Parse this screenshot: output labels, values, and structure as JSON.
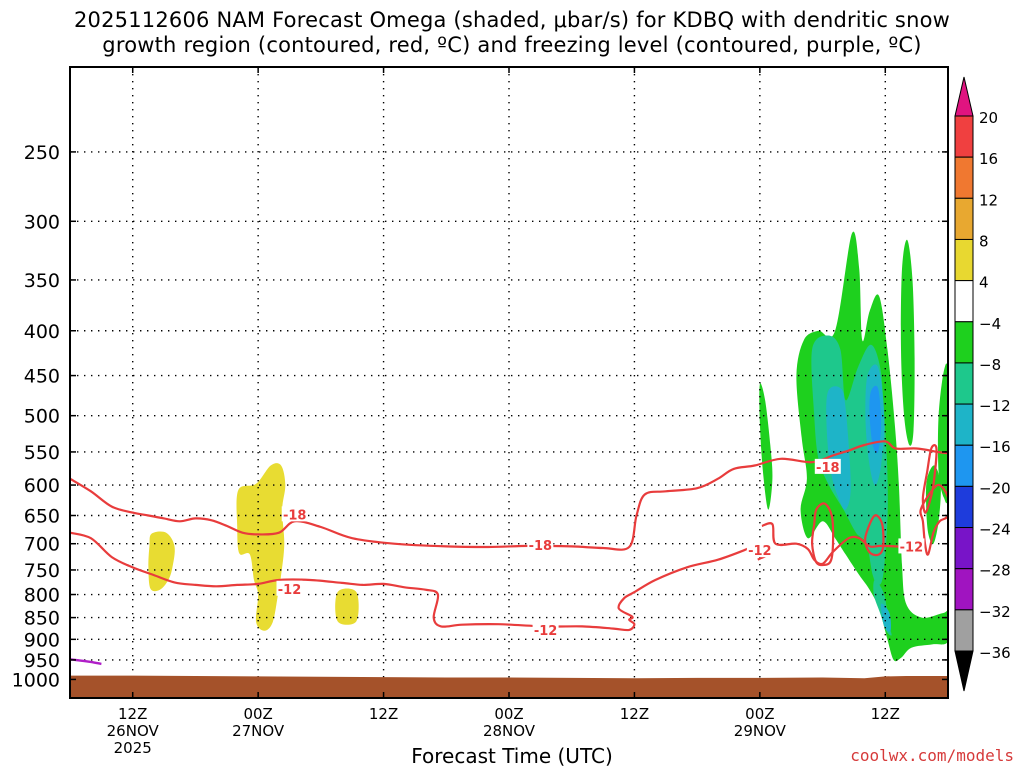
{
  "title": {
    "line1": "2025112606 NAM Forecast Omega (shaded, μbar/s) for KDBQ with dendritic snow",
    "line2": "growth region (contoured, red, ºC) and freezing level (contoured, purple, ºC)"
  },
  "credit": "coolwx.com/models",
  "chart_data": {
    "type": "heatmap",
    "xlabel": "Forecast Time (UTC)",
    "y_axis": {
      "scale": "log-pressure",
      "reversed": true,
      "ticks": [
        250,
        300,
        350,
        400,
        450,
        500,
        550,
        600,
        650,
        700,
        750,
        800,
        850,
        900,
        950,
        1000
      ],
      "range": [
        1050,
        200
      ]
    },
    "x_axis": {
      "range_hours": [
        0,
        84
      ],
      "ticks": [
        {
          "hour": 6,
          "labels": [
            "12Z",
            "26NOV",
            "2025"
          ]
        },
        {
          "hour": 18,
          "labels": [
            "00Z",
            "27NOV"
          ]
        },
        {
          "hour": 30,
          "labels": [
            "12Z"
          ]
        },
        {
          "hour": 42,
          "labels": [
            "00Z",
            "28NOV"
          ]
        },
        {
          "hour": 54,
          "labels": [
            "12Z"
          ]
        },
        {
          "hour": 66,
          "labels": [
            "00Z",
            "29NOV"
          ]
        },
        {
          "hour": 78,
          "labels": [
            "12Z"
          ]
        }
      ]
    },
    "grid": true,
    "colorbar": {
      "unit": "μbar/s",
      "labels": [
        "20",
        "16",
        "12",
        "8",
        "4",
        "−4",
        "−8",
        "−12",
        "−16",
        "−20",
        "−24",
        "−28",
        "−32",
        "−36"
      ],
      "colors": [
        "#e01480",
        "#f04040",
        "#f07830",
        "#e8a830",
        "#e8d830",
        "#ffffff",
        "#1ed01e",
        "#1ec88c",
        "#1eb4c8",
        "#1e96f0",
        "#1e3cdc",
        "#7814c8",
        "#a014c0",
        "#a0a0a0",
        "#000000"
      ]
    },
    "shaded_regions": [
      {
        "omega": "4 to 8",
        "color": "#e8dc32",
        "t_range": [
          7.5,
          10
        ],
        "p_range": [
          680,
          790
        ]
      },
      {
        "omega": "4 to 8",
        "color": "#e8dc32",
        "t_range": [
          16,
          20.5
        ],
        "p_range": [
          570,
          880
        ]
      },
      {
        "omega": "4 to 8",
        "color": "#e8dc32",
        "t_range": [
          25.5,
          27.5
        ],
        "p_range": [
          795,
          860
        ]
      },
      {
        "omega": "-4 to -8",
        "color": "#1ed01e",
        "t_range": [
          66,
          84
        ],
        "p_range": [
          310,
          950
        ]
      },
      {
        "omega": "-8 to -12",
        "color": "#1ec88c",
        "t_range": [
          71,
          80
        ],
        "p_range": [
          440,
          760
        ]
      },
      {
        "omega": "-12 to -16",
        "color": "#1eb4c8",
        "t_range": [
          72,
          79
        ],
        "p_range": [
          480,
          650
        ]
      },
      {
        "omega": "-16 to -20",
        "color": "#1e96f0",
        "t_range": [
          76.5,
          78
        ],
        "p_range": [
          470,
          550
        ]
      }
    ],
    "contours": [
      {
        "name": "-18",
        "color": "#e83c3c",
        "labels": [
          {
            "text": "-18",
            "t": 21.5,
            "p": 648
          },
          {
            "text": "-18",
            "t": 45,
            "p": 702
          },
          {
            "text": "-18",
            "t": 72.5,
            "p": 572
          }
        ]
      },
      {
        "name": "-12",
        "color": "#e83c3c",
        "labels": [
          {
            "text": "-12",
            "t": 21,
            "p": 788
          },
          {
            "text": "-12",
            "t": 45.5,
            "p": 878
          },
          {
            "text": "-12",
            "t": 66,
            "p": 712
          },
          {
            "text": "-12",
            "t": 80.5,
            "p": 705
          }
        ]
      },
      {
        "name": "0",
        "color": "#b01ec8",
        "labels": []
      }
    ],
    "terrain": {
      "color": "#a5522a",
      "surface_pressure_hpa": 990
    }
  }
}
